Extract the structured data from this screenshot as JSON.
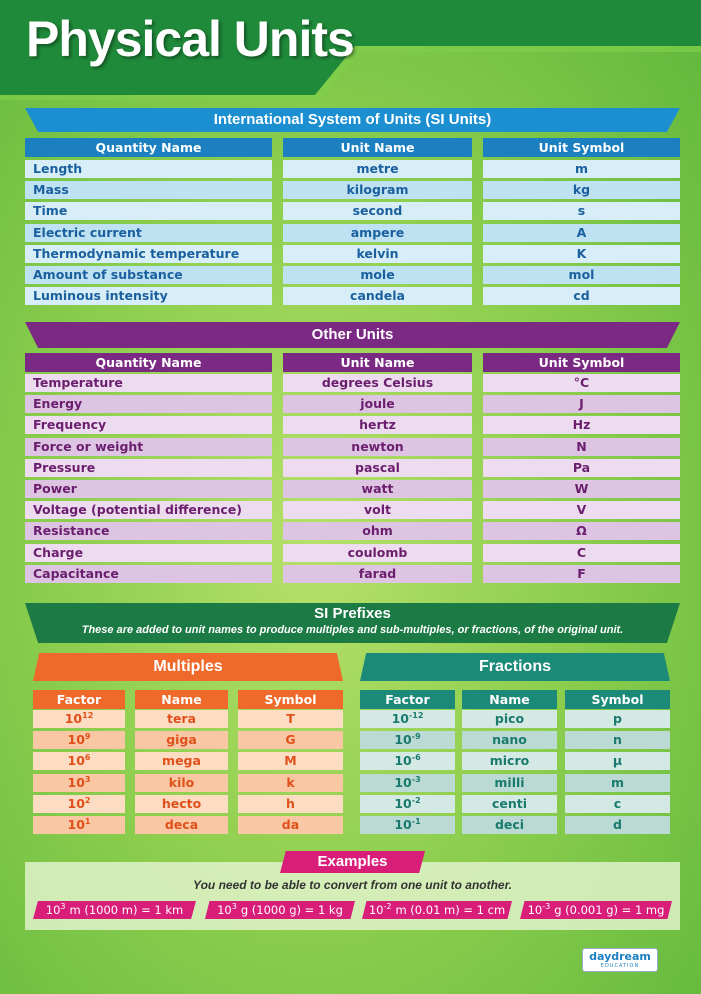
{
  "title": "Physical Units",
  "si": {
    "heading": "International System of Units (SI Units)",
    "columns": [
      "Quantity Name",
      "Unit Name",
      "Unit Symbol"
    ],
    "rows": [
      [
        "Length",
        "metre",
        "m"
      ],
      [
        "Mass",
        "kilogram",
        "kg"
      ],
      [
        "Time",
        "second",
        "s"
      ],
      [
        "Electric current",
        "ampere",
        "A"
      ],
      [
        "Thermodynamic temperature",
        "kelvin",
        "K"
      ],
      [
        "Amount of substance",
        "mole",
        "mol"
      ],
      [
        "Luminous intensity",
        "candela",
        "cd"
      ]
    ]
  },
  "other": {
    "heading": "Other Units",
    "columns": [
      "Quantity Name",
      "Unit Name",
      "Unit Symbol"
    ],
    "rows": [
      [
        "Temperature",
        "degrees Celsius",
        "°C"
      ],
      [
        "Energy",
        "joule",
        "J"
      ],
      [
        "Frequency",
        "hertz",
        "Hz"
      ],
      [
        "Force or weight",
        "newton",
        "N"
      ],
      [
        "Pressure",
        "pascal",
        "Pa"
      ],
      [
        "Power",
        "watt",
        "W"
      ],
      [
        "Voltage (potential difference)",
        "volt",
        "V"
      ],
      [
        "Resistance",
        "ohm",
        "Ω"
      ],
      [
        "Charge",
        "coulomb",
        "C"
      ],
      [
        "Capacitance",
        "farad",
        "F"
      ]
    ]
  },
  "prefixes": {
    "heading": "SI Prefixes",
    "subtitle": "These are added to unit names to produce multiples and sub-multiples, or fractions, of the original unit.",
    "multiples": {
      "heading": "Multiples",
      "columns": [
        "Factor",
        "Name",
        "Symbol"
      ],
      "rows": [
        [
          {
            "base": "10",
            "exp": "12"
          },
          "tera",
          "T"
        ],
        [
          {
            "base": "10",
            "exp": "9"
          },
          "giga",
          "G"
        ],
        [
          {
            "base": "10",
            "exp": "6"
          },
          "mega",
          "M"
        ],
        [
          {
            "base": "10",
            "exp": "3"
          },
          "kilo",
          "k"
        ],
        [
          {
            "base": "10",
            "exp": "2"
          },
          "hecto",
          "h"
        ],
        [
          {
            "base": "10",
            "exp": "1"
          },
          "deca",
          "da"
        ]
      ]
    },
    "fractions": {
      "heading": "Fractions",
      "columns": [
        "Factor",
        "Name",
        "Symbol"
      ],
      "rows": [
        [
          {
            "base": "10",
            "exp": "-12"
          },
          "pico",
          "p"
        ],
        [
          {
            "base": "10",
            "exp": "-9"
          },
          "nano",
          "n"
        ],
        [
          {
            "base": "10",
            "exp": "-6"
          },
          "micro",
          "μ"
        ],
        [
          {
            "base": "10",
            "exp": "-3"
          },
          "milli",
          "m"
        ],
        [
          {
            "base": "10",
            "exp": "-2"
          },
          "centi",
          "c"
        ],
        [
          {
            "base": "10",
            "exp": "-1"
          },
          "deci",
          "d"
        ]
      ]
    }
  },
  "examples": {
    "heading": "Examples",
    "text": "You need to be able to convert from one unit to another.",
    "items": [
      {
        "base": "10",
        "exp": "3",
        "text": "m (1000 m) = 1 km"
      },
      {
        "base": "10",
        "exp": "3",
        "text": "g (1000 g) = 1 kg"
      },
      {
        "base": "10",
        "exp": "-2",
        "text": "m (0.01 m) = 1 cm"
      },
      {
        "base": "10",
        "exp": "-3",
        "text": "g (0.001 g) = 1 mg"
      }
    ]
  },
  "logo": {
    "name": "daydream",
    "tagline": "EDUCATION"
  }
}
